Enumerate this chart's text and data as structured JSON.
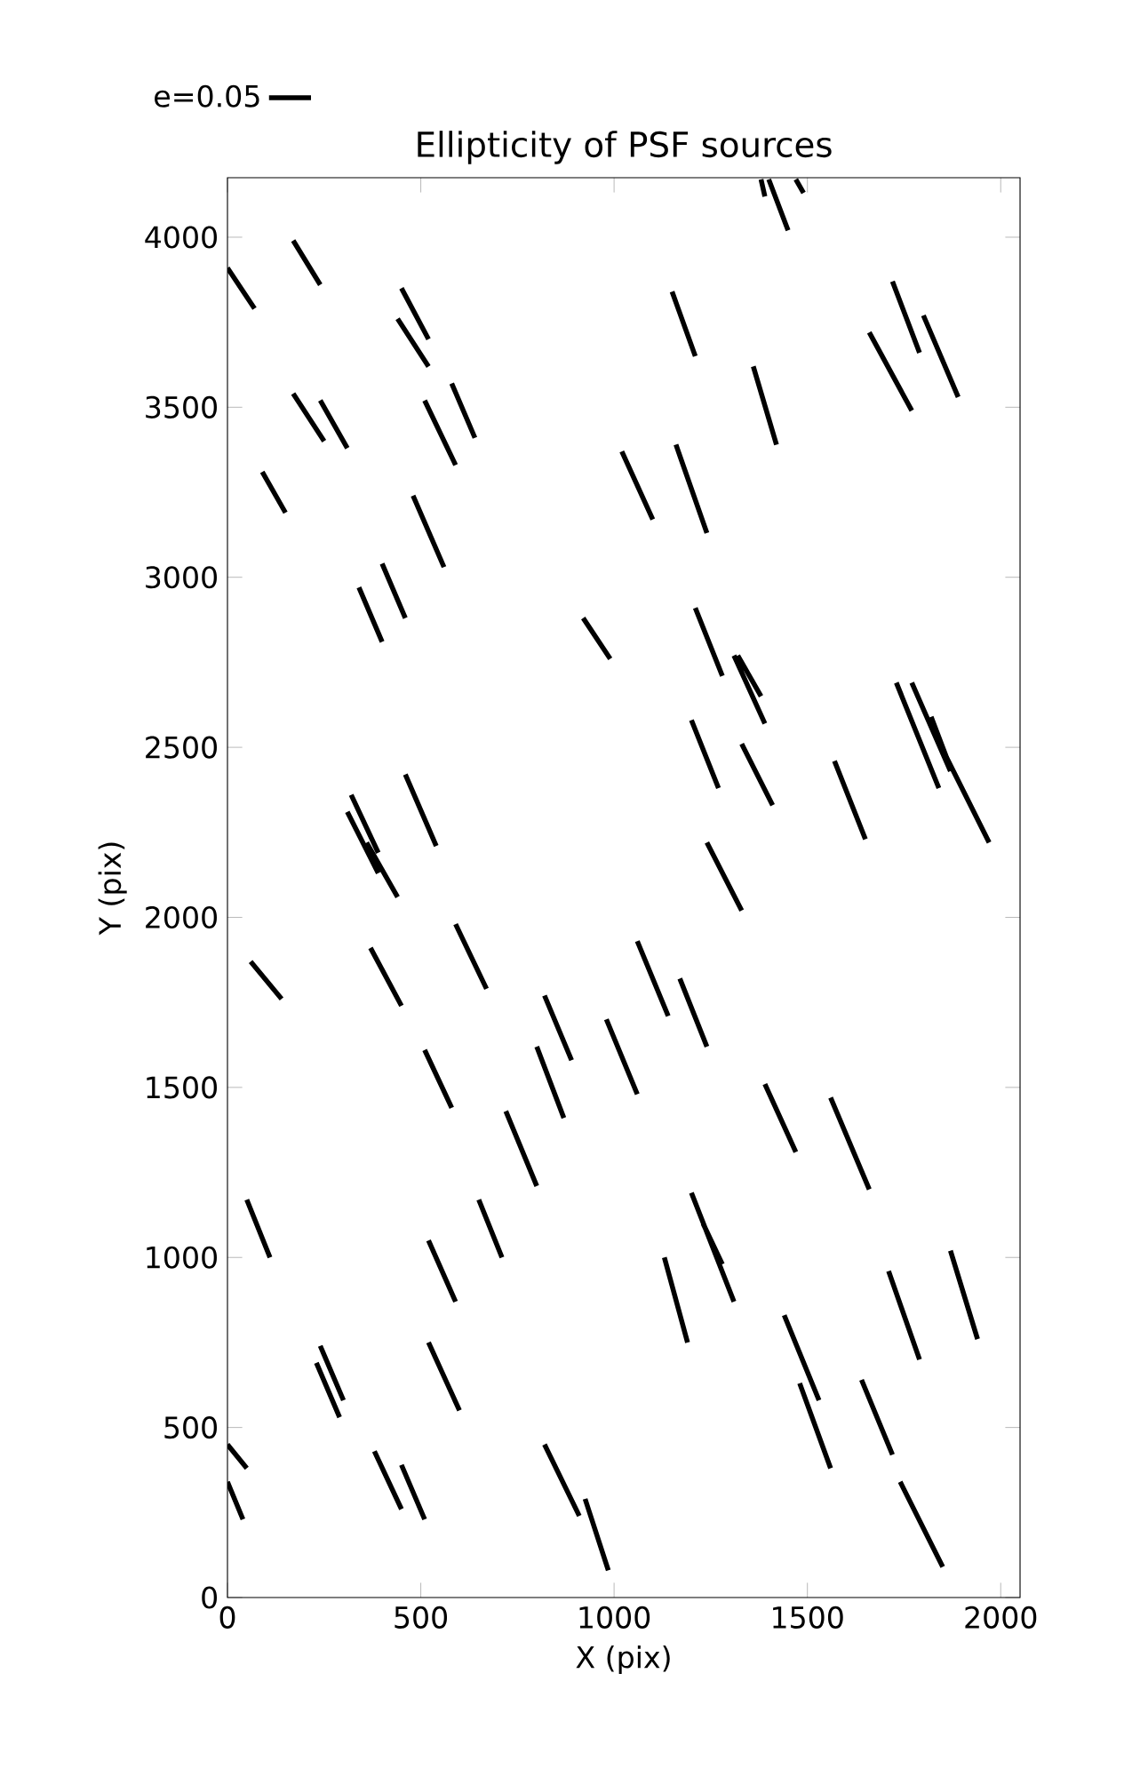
{
  "chart_data": {
    "type": "line",
    "title": "Ellipticity of PSF sources",
    "xlabel": "X (pix)",
    "ylabel": "Y (pix)",
    "xlim": [
      0,
      2050
    ],
    "ylim": [
      0,
      4175
    ],
    "xticks": [
      0,
      500,
      1000,
      1500,
      2000
    ],
    "yticks": [
      0,
      500,
      1000,
      1500,
      2000,
      2500,
      3000,
      3500,
      4000
    ],
    "legend": "top left",
    "marker": "none",
    "line_style": "solid",
    "series": [
      {
        "name": "e=0.05",
        "color": "#000000",
        "x": [
          0,
          70,
          null,
          170,
          240,
          null,
          1380,
          1390,
          null,
          1400,
          1450,
          null,
          1470,
          1490,
          null,
          450,
          520,
          null,
          440,
          520,
          null,
          1150,
          1210,
          null,
          1720,
          1790,
          null,
          1660,
          1770,
          null,
          1800,
          1890,
          null,
          1360,
          1420,
          null,
          170,
          250,
          null,
          240,
          310,
          null,
          510,
          590,
          null,
          580,
          640,
          null,
          90,
          150,
          null,
          1020,
          1100,
          null,
          1160,
          1240,
          null,
          480,
          560,
          null,
          340,
          400,
          null,
          400,
          460,
          null,
          920,
          990,
          null,
          1210,
          1280,
          null,
          1310,
          1390,
          null,
          1320,
          1380,
          null,
          1730,
          1840,
          null,
          1770,
          1870,
          null,
          1820,
          1870,
          null,
          1860,
          1970,
          null,
          1200,
          1270,
          null,
          1330,
          1410,
          null,
          1570,
          1650,
          null,
          320,
          390,
          null,
          310,
          390,
          null,
          360,
          440,
          null,
          460,
          540,
          null,
          1240,
          1330,
          null,
          60,
          140,
          null,
          370,
          450,
          null,
          590,
          670,
          null,
          1060,
          1140,
          null,
          1170,
          1240,
          null,
          820,
          890,
          null,
          980,
          1060,
          null,
          800,
          870,
          null,
          510,
          580,
          null,
          1390,
          1470,
          null,
          1560,
          1660,
          null,
          720,
          800,
          null,
          50,
          110,
          null,
          650,
          710,
          null,
          520,
          590,
          null,
          1200,
          1310,
          null,
          1230,
          1280,
          null,
          1130,
          1190,
          null,
          1710,
          1790,
          null,
          1870,
          1940,
          null,
          1440,
          1530,
          null,
          240,
          300,
          null,
          230,
          290,
          null,
          520,
          600,
          null,
          1480,
          1560,
          null,
          1640,
          1720,
          null,
          0,
          50,
          null,
          0,
          40,
          null,
          380,
          450,
          null,
          450,
          510,
          null,
          820,
          910,
          null,
          925,
          985,
          null,
          1740,
          1850
        ],
        "values": [
          3910,
          3790,
          null,
          3990,
          3860,
          null,
          4170,
          4120,
          null,
          4170,
          4020,
          null,
          4170,
          4130,
          null,
          3850,
          3700,
          null,
          3760,
          3620,
          null,
          3840,
          3650,
          null,
          3870,
          3660,
          null,
          3720,
          3490,
          null,
          3770,
          3530,
          null,
          3620,
          3390,
          null,
          3540,
          3400,
          null,
          3520,
          3380,
          null,
          3520,
          3330,
          null,
          3570,
          3410,
          null,
          3310,
          3190,
          null,
          3370,
          3170,
          null,
          3390,
          3130,
          null,
          3240,
          3030,
          null,
          2970,
          2810,
          null,
          3040,
          2880,
          null,
          2880,
          2760,
          null,
          2910,
          2710,
          null,
          2770,
          2570,
          null,
          2770,
          2650,
          null,
          2690,
          2380,
          null,
          2690,
          2430,
          null,
          2590,
          2440,
          null,
          2470,
          2220,
          null,
          2580,
          2380,
          null,
          2510,
          2330,
          null,
          2460,
          2230,
          null,
          2360,
          2190,
          null,
          2310,
          2130,
          null,
          2220,
          2060,
          null,
          2420,
          2210,
          null,
          2220,
          2020,
          null,
          1870,
          1760,
          null,
          1910,
          1740,
          null,
          1980,
          1790,
          null,
          1930,
          1710,
          null,
          1820,
          1620,
          null,
          1770,
          1580,
          null,
          1700,
          1480,
          null,
          1620,
          1410,
          null,
          1610,
          1440,
          null,
          1510,
          1310,
          null,
          1470,
          1200,
          null,
          1430,
          1210,
          null,
          1170,
          1000,
          null,
          1170,
          1000,
          null,
          1050,
          870,
          null,
          1190,
          870,
          null,
          1100,
          980,
          null,
          1000,
          750,
          null,
          960,
          700,
          null,
          1020,
          760,
          null,
          830,
          580,
          null,
          740,
          580,
          null,
          690,
          530,
          null,
          750,
          550,
          null,
          630,
          380,
          null,
          640,
          420,
          null,
          450,
          380,
          null,
          340,
          230,
          null,
          430,
          260,
          null,
          390,
          230,
          null,
          450,
          240,
          null,
          290,
          80,
          null,
          340,
          90
        ]
      }
    ]
  }
}
